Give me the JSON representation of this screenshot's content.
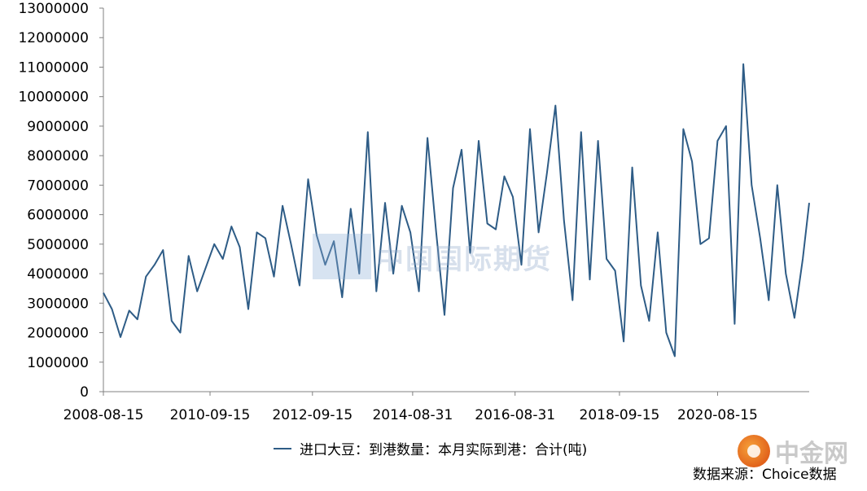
{
  "chart_data": {
    "type": "line",
    "title": "",
    "xlabel": "",
    "ylabel": "",
    "ylim": [
      0,
      13000000
    ],
    "yticks": [
      0,
      1000000,
      2000000,
      3000000,
      4000000,
      5000000,
      6000000,
      7000000,
      8000000,
      9000000,
      10000000,
      11000000,
      12000000,
      13000000
    ],
    "ytick_labels": [
      "0",
      "1000000",
      "2000000",
      "3000000",
      "4000000",
      "5000000",
      "6000000",
      "7000000",
      "8000000",
      "9000000",
      "10000000",
      "11000000",
      "12000000",
      "13000000"
    ],
    "xticks": [
      "2008-08-15",
      "2010-09-15",
      "2012-09-15",
      "2014-08-31",
      "2016-08-31",
      "2018-09-15",
      "2020-08-15"
    ],
    "xlim": [
      "2008-08-15",
      "2022-05-31"
    ],
    "grid": false,
    "legend_position": "bottom",
    "series": [
      {
        "name": "进口大豆：到港数量：本月实际到港：合计(吨)",
        "color": "#2e5c86",
        "x": [
          "2008-08-15",
          "2008-10-15",
          "2008-12-15",
          "2009-02-15",
          "2009-04-15",
          "2009-06-15",
          "2009-08-15",
          "2009-10-15",
          "2009-12-15",
          "2010-02-15",
          "2010-04-15",
          "2010-06-15",
          "2010-08-15",
          "2010-10-15",
          "2010-12-15",
          "2011-02-15",
          "2011-04-15",
          "2011-06-15",
          "2011-08-15",
          "2011-10-15",
          "2011-12-15",
          "2012-02-15",
          "2012-04-15",
          "2012-06-15",
          "2012-08-15",
          "2012-10-15",
          "2012-12-15",
          "2013-02-15",
          "2013-04-15",
          "2013-06-15",
          "2013-08-15",
          "2013-10-15",
          "2013-12-15",
          "2014-02-15",
          "2014-04-15",
          "2014-06-15",
          "2014-08-15",
          "2014-10-15",
          "2014-12-15",
          "2015-02-15",
          "2015-04-15",
          "2015-06-15",
          "2015-08-15",
          "2015-10-15",
          "2015-12-15",
          "2016-02-15",
          "2016-04-15",
          "2016-06-15",
          "2016-08-15",
          "2016-10-15",
          "2016-12-15",
          "2017-02-15",
          "2017-04-15",
          "2017-06-15",
          "2017-08-15",
          "2017-10-15",
          "2017-12-15",
          "2018-02-15",
          "2018-04-15",
          "2018-06-15",
          "2018-08-15",
          "2018-10-15",
          "2018-12-15",
          "2019-02-15",
          "2019-04-15",
          "2019-06-15",
          "2019-08-15",
          "2019-10-15",
          "2019-12-15",
          "2020-02-15",
          "2020-04-15",
          "2020-06-15",
          "2020-08-15",
          "2020-10-15",
          "2020-12-15",
          "2021-02-15",
          "2021-04-15",
          "2021-06-15",
          "2021-08-15",
          "2021-10-15",
          "2021-12-15",
          "2022-02-15",
          "2022-04-15",
          "2022-05-31"
        ],
        "values": [
          3350000,
          2800000,
          1850000,
          2750000,
          2450000,
          3900000,
          4300000,
          4800000,
          2400000,
          2000000,
          4600000,
          3400000,
          4200000,
          5000000,
          4500000,
          5600000,
          4900000,
          2800000,
          5400000,
          5200000,
          3900000,
          6300000,
          5000000,
          3600000,
          7200000,
          5300000,
          4300000,
          5100000,
          3200000,
          6200000,
          4000000,
          8800000,
          3400000,
          6400000,
          4000000,
          6300000,
          5400000,
          3400000,
          8600000,
          5400000,
          2600000,
          6900000,
          8200000,
          4700000,
          8500000,
          5700000,
          5500000,
          7300000,
          6600000,
          4300000,
          8900000,
          5400000,
          7400000,
          9700000,
          5800000,
          3100000,
          8800000,
          3800000,
          8500000,
          4500000,
          4100000,
          1700000,
          7600000,
          3600000,
          2400000,
          5400000,
          2000000,
          1200000,
          8900000,
          7800000,
          5000000,
          5200000,
          8500000,
          9000000,
          2300000,
          11100000,
          7000000,
          5200000,
          3100000,
          7000000,
          4000000,
          2500000,
          4500000,
          6400000
        ]
      }
    ]
  },
  "legend": {
    "label": "进口大豆：到港数量：本月实际到港：合计(吨)"
  },
  "source": {
    "text": "数据来源：Choice数据"
  },
  "watermark": {
    "text": "中国国际期货"
  },
  "logo": {
    "text": "中金网"
  }
}
